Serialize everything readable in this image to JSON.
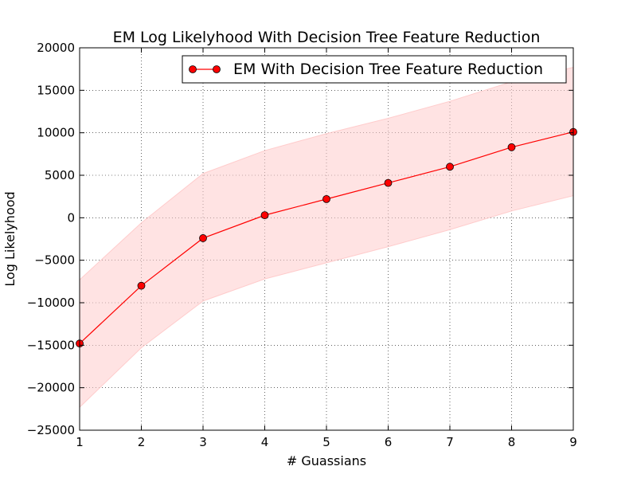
{
  "chart_data": {
    "type": "line",
    "title": "EM Log Likelyhood With Decision Tree Feature Reduction",
    "xlabel": "# Guassians",
    "ylabel": "Log Likelyhood",
    "xlim": [
      1,
      9
    ],
    "ylim": [
      -25000,
      20000
    ],
    "grid": true,
    "legend_position": "top-right",
    "x_ticks": [
      1,
      2,
      3,
      4,
      5,
      6,
      7,
      8,
      9
    ],
    "y_ticks": [
      -25000,
      -20000,
      -15000,
      -10000,
      -5000,
      0,
      5000,
      10000,
      15000,
      20000
    ],
    "x": [
      1,
      2,
      3,
      4,
      5,
      6,
      7,
      8,
      9
    ],
    "series": [
      {
        "name": "EM With Decision Tree Feature Reduction",
        "color": "#ff0000",
        "marker": "circle",
        "values": [
          -14800,
          -8000,
          -2400,
          300,
          2200,
          4100,
          6000,
          8300,
          10100
        ],
        "band_upper": [
          -7300,
          -600,
          5200,
          7900,
          9900,
          11700,
          13700,
          16000,
          17700
        ],
        "band_lower": [
          -22300,
          -15300,
          -9800,
          -7200,
          -5300,
          -3400,
          -1400,
          800,
          2600
        ],
        "band_color": "#ffcccc"
      }
    ]
  }
}
